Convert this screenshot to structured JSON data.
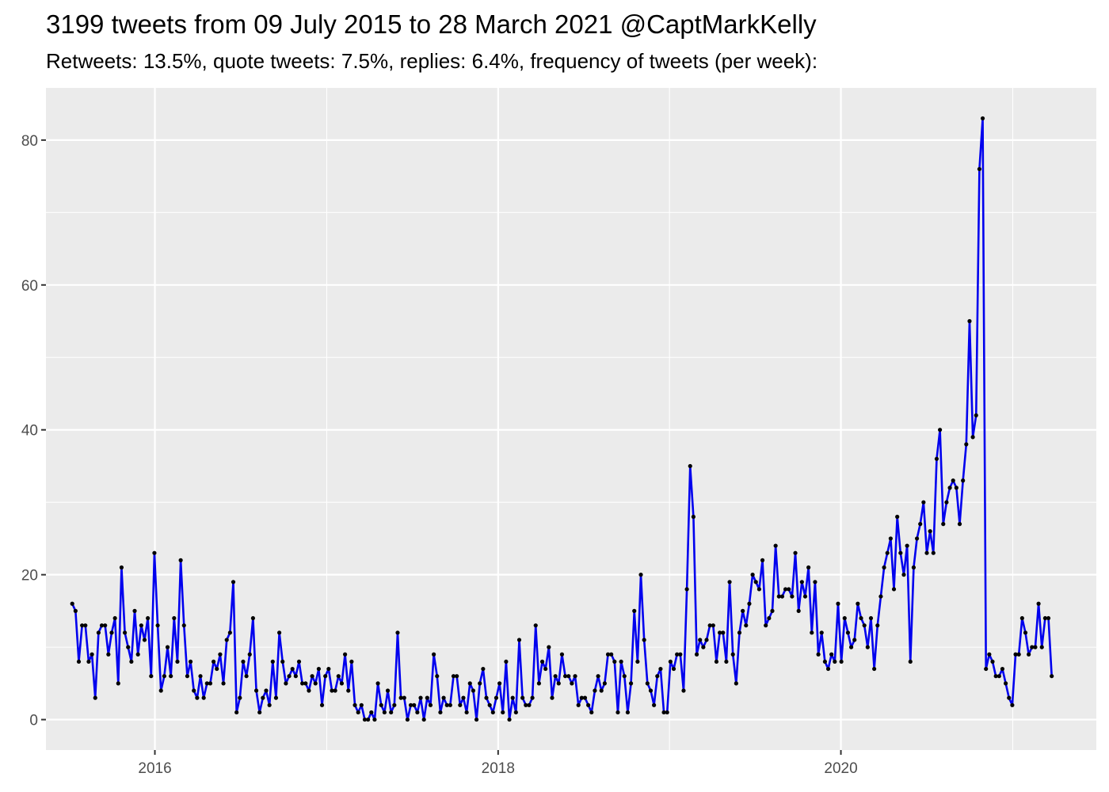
{
  "chart_data": {
    "type": "line",
    "title": "3199 tweets from 09 July 2015 to 28 March 2021 @CaptMarkKelly",
    "subtitle": "Retweets: 13.5%, quote tweets: 7.5%, replies: 6.4%, frequency of tweets (per week):",
    "xlabel": "",
    "ylabel": "",
    "x_start": "2015-07-09",
    "x_step_days": 7,
    "xlim": [
      "2015-05-14",
      "2021-06-28"
    ],
    "ylim": [
      -4.2,
      87.2
    ],
    "x_ticks": [
      {
        "date": "2016-01-01",
        "label": "2016"
      },
      {
        "date": "2018-01-01",
        "label": "2018"
      },
      {
        "date": "2020-01-01",
        "label": "2020"
      }
    ],
    "x_minor_ticks": [
      "2017-01-01",
      "2019-01-01",
      "2021-01-01"
    ],
    "y_ticks": [
      0,
      20,
      40,
      60,
      80
    ],
    "y_minor_ticks": [
      10,
      30,
      50,
      70
    ],
    "grid": true,
    "colors": {
      "line": "#0000ee",
      "point": "#000000",
      "panel": "#ebebeb",
      "grid": "#ffffff"
    },
    "series": [
      {
        "values": [
          16,
          15,
          8,
          13,
          13,
          8,
          9,
          3,
          12,
          13,
          13,
          9,
          12,
          14,
          5,
          21,
          12,
          10,
          8,
          15,
          9,
          13,
          11,
          14,
          6,
          23,
          13,
          4,
          6,
          10,
          6,
          14,
          8,
          22,
          13,
          6,
          8,
          4,
          3,
          6,
          3,
          5,
          5,
          8,
          7,
          9,
          5,
          11,
          12,
          19,
          1,
          3,
          8,
          6,
          9,
          14,
          4,
          1,
          3,
          4,
          2,
          8,
          3,
          12,
          8,
          5,
          6,
          7,
          6,
          8,
          5,
          5,
          4,
          6,
          5,
          7,
          2,
          6,
          7,
          4,
          4,
          6,
          5,
          9,
          4,
          8,
          2,
          1,
          2,
          0,
          0,
          1,
          0,
          5,
          2,
          1,
          4,
          1,
          2,
          12,
          3,
          3,
          0,
          2,
          2,
          1,
          3,
          0,
          3,
          2,
          9,
          6,
          1,
          3,
          2,
          2,
          6,
          6,
          2,
          3,
          1,
          5,
          4,
          0,
          5,
          7,
          3,
          2,
          1,
          3,
          5,
          1,
          8,
          0,
          3,
          1,
          11,
          3,
          2,
          2,
          3,
          13,
          5,
          8,
          7,
          10,
          3,
          6,
          5,
          9,
          6,
          6,
          5,
          6,
          2,
          3,
          3,
          2,
          1,
          4,
          6,
          4,
          5,
          9,
          9,
          8,
          1,
          8,
          6,
          1,
          5,
          15,
          8,
          20,
          11,
          5,
          4,
          2,
          6,
          7,
          1,
          1,
          8,
          7,
          9,
          9,
          4,
          18,
          35,
          28,
          9,
          11,
          10,
          11,
          13,
          13,
          8,
          12,
          12,
          8,
          19,
          9,
          5,
          12,
          15,
          13,
          16,
          20,
          19,
          18,
          22,
          13,
          14,
          15,
          24,
          17,
          17,
          18,
          18,
          17,
          23,
          15,
          19,
          17,
          21,
          12,
          19,
          9,
          12,
          8,
          7,
          9,
          8,
          16,
          8,
          14,
          12,
          10,
          11,
          16,
          14,
          13,
          10,
          14,
          7,
          13,
          17,
          21,
          23,
          25,
          18,
          28,
          23,
          20,
          24,
          8,
          21,
          25,
          27,
          30,
          23,
          26,
          23,
          36,
          40,
          27,
          30,
          32,
          33,
          32,
          27,
          33,
          38,
          55,
          39,
          42,
          76,
          83,
          7,
          9,
          8,
          6,
          6,
          7,
          5,
          3,
          2,
          9,
          9,
          14,
          12,
          9,
          10,
          10,
          16,
          10,
          14,
          14,
          6
        ]
      }
    ]
  }
}
